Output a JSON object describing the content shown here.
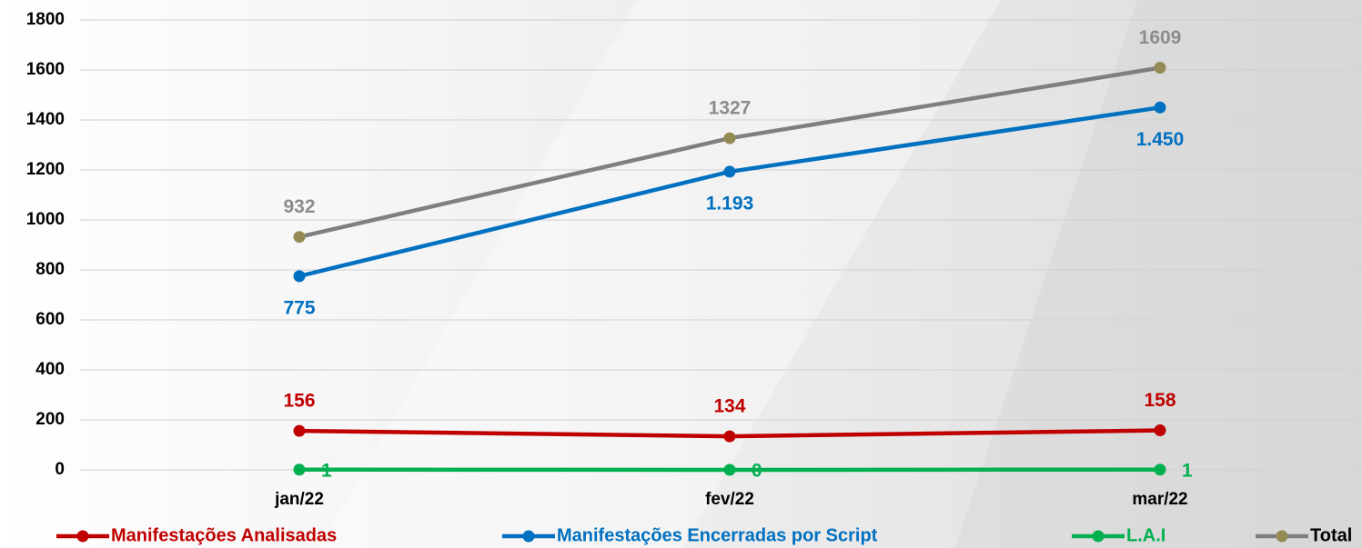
{
  "chart_data": {
    "type": "line",
    "categories": [
      "jan/22",
      "fev/22",
      "mar/22"
    ],
    "series": [
      {
        "name": "Manifestações Analisadas",
        "color": "#c00000",
        "values": [
          156,
          134,
          158
        ]
      },
      {
        "name": "Manifestações Encerradas por Script",
        "color": "#0070c0",
        "values": [
          775,
          1193,
          1450
        ],
        "value_labels": [
          "775",
          "1.193",
          "1.450"
        ]
      },
      {
        "name": "L.A.I",
        "color": "#00b050",
        "values": [
          1,
          0,
          1
        ]
      },
      {
        "name": "Total",
        "color": "#7f7f7f",
        "marker_color": "#948a54",
        "values": [
          932,
          1327,
          1609
        ]
      }
    ],
    "ylim": [
      0,
      1800
    ],
    "yticks": [
      0,
      200,
      400,
      600,
      800,
      1000,
      1200,
      1400,
      1600,
      1800
    ],
    "grid": true,
    "legend": "bottom"
  }
}
